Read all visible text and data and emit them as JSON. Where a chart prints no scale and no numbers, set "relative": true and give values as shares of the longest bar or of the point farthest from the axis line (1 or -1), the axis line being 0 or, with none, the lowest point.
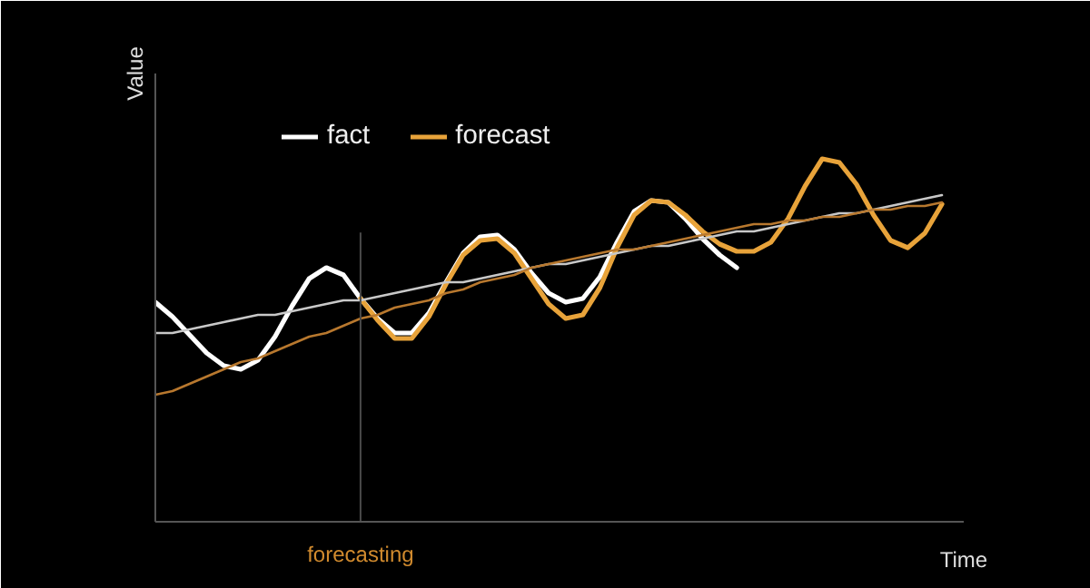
{
  "chart_data": {
    "type": "line",
    "relative": true,
    "xlabel": "Time",
    "ylabel": "Value",
    "legend": "top left",
    "line_style": "solid",
    "categories": [
      null,
      null,
      null,
      null,
      null,
      null,
      null,
      null,
      null,
      null,
      null,
      null,
      null,
      null,
      null,
      null,
      null,
      null,
      null,
      null,
      null,
      null,
      null,
      null,
      null,
      null,
      null,
      null,
      null,
      null,
      null,
      null,
      null,
      null,
      null,
      null,
      null,
      null,
      null,
      null,
      null,
      null,
      null,
      null,
      null,
      null,
      null
    ],
    "ref_lines": [
      {
        "axis": "x",
        "label": "forecasting",
        "color": "#4a4a4a"
      }
    ],
    "series": [
      {
        "name": "fact",
        "color": "#ffffff",
        "values": [
          0.605,
          0.565,
          0.515,
          0.465,
          0.43,
          0.42,
          0.445,
          0.51,
          0.595,
          0.67,
          0.7,
          0.68,
          0.615,
          0.56,
          0.52,
          0.52,
          0.575,
          0.66,
          0.74,
          0.785,
          0.79,
          0.75,
          0.685,
          0.63,
          0.605,
          0.615,
          0.675,
          0.77,
          0.855,
          0.885,
          0.88,
          0.835,
          0.78,
          0.735,
          0.7,
          null,
          null,
          null,
          null,
          null,
          null,
          null,
          null,
          null,
          null,
          null,
          null
        ]
      },
      {
        "name": "forecast",
        "color": "#e8a33a",
        "values": [
          null,
          null,
          null,
          null,
          null,
          null,
          null,
          null,
          null,
          null,
          null,
          null,
          0.615,
          0.555,
          0.505,
          0.505,
          0.565,
          0.655,
          0.735,
          0.775,
          0.78,
          0.74,
          0.67,
          0.6,
          0.56,
          0.57,
          0.645,
          0.755,
          0.845,
          0.885,
          0.88,
          0.845,
          0.8,
          0.765,
          0.745,
          0.745,
          0.77,
          0.835,
          0.925,
          1.0,
          0.99,
          0.93,
          0.845,
          0.775,
          0.755,
          0.795,
          0.875
        ]
      },
      {
        "color": "#c8c8c8",
        "values": [
          0.52,
          0.52,
          0.53,
          0.54,
          0.55,
          0.56,
          0.57,
          0.57,
          0.58,
          0.59,
          0.6,
          0.61,
          0.61,
          0.62,
          0.63,
          0.64,
          0.65,
          0.66,
          0.66,
          0.67,
          0.68,
          0.69,
          0.7,
          0.71,
          0.71,
          0.72,
          0.73,
          0.74,
          0.75,
          0.76,
          0.76,
          0.77,
          0.78,
          0.79,
          0.8,
          0.8,
          0.81,
          0.82,
          0.83,
          0.84,
          0.85,
          0.85,
          0.86,
          0.87,
          0.88,
          0.89,
          0.9
        ]
      },
      {
        "color": "#b8782e",
        "values": [
          0.35,
          0.36,
          0.38,
          0.4,
          0.42,
          0.44,
          0.45,
          0.47,
          0.49,
          0.51,
          0.52,
          0.54,
          0.56,
          0.57,
          0.59,
          0.6,
          0.61,
          0.63,
          0.64,
          0.66,
          0.67,
          0.68,
          0.7,
          0.71,
          0.72,
          0.73,
          0.74,
          0.75,
          0.75,
          0.76,
          0.77,
          0.78,
          0.79,
          0.8,
          0.81,
          0.82,
          0.82,
          0.83,
          0.83,
          0.84,
          0.84,
          0.85,
          0.86,
          0.86,
          0.87,
          0.87,
          0.88
        ]
      }
    ]
  }
}
